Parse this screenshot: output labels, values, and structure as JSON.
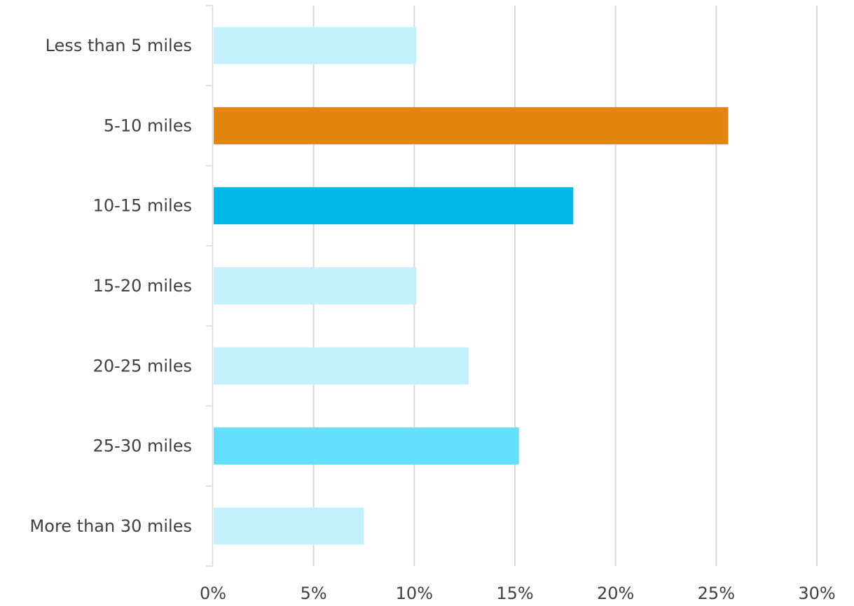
{
  "chart_data": {
    "type": "bar",
    "orientation": "horizontal",
    "categories": [
      "Less than 5 miles",
      "5-10 miles",
      "10-15 miles",
      "15-20 miles",
      "20-25 miles",
      "25-30 miles",
      "More than 30 miles"
    ],
    "values": [
      10.1,
      25.6,
      17.9,
      10.1,
      12.7,
      15.2,
      7.5
    ],
    "bar_colors": [
      "#c2f0fd",
      "#e3850e",
      "#00b8e6",
      "#c2f0fd",
      "#c2f0fd",
      "#66dffe",
      "#c2f0fd"
    ],
    "xlim": [
      0,
      30
    ],
    "x_ticks": [
      0,
      5,
      10,
      15,
      20,
      25,
      30
    ],
    "x_tick_labels": [
      "0%",
      "5%",
      "10%",
      "15%",
      "20%",
      "25%",
      "30%"
    ],
    "grid": true,
    "title": "",
    "xlabel": "",
    "ylabel": ""
  }
}
